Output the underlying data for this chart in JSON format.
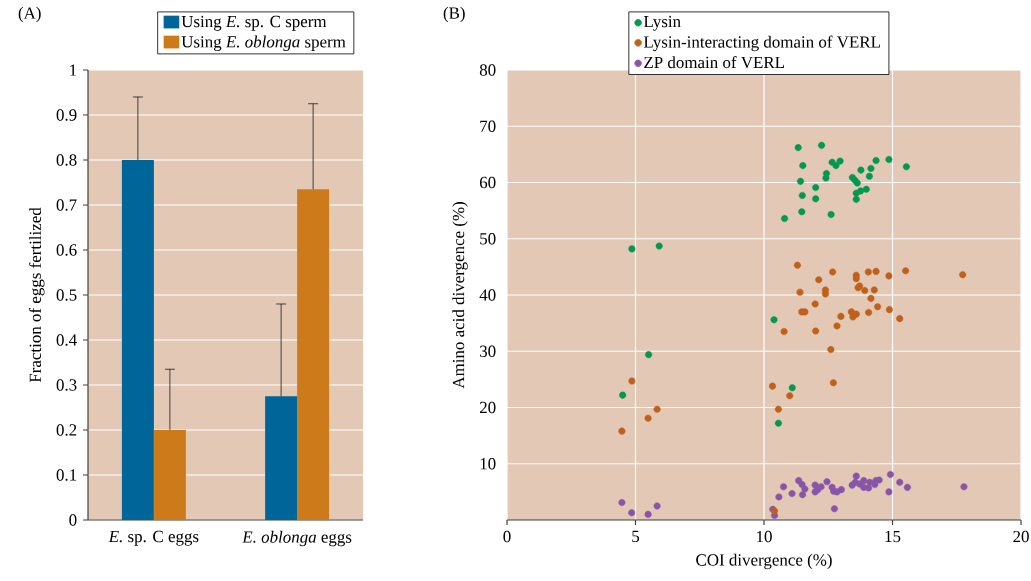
{
  "chart_data": [
    {
      "type": "bar",
      "title": "(A)",
      "ylabel": "Fraction of eggs fertilized",
      "categories": [
        "*E.* sp. C eggs",
        "*E. oblonga* eggs"
      ],
      "series": [
        {
          "name": "Using *E.* sp. C sperm",
          "color": "#006699",
          "values": [
            0.8,
            0.275
          ],
          "errors": [
            [
              0.8,
              0.94
            ],
            [
              0.275,
              0.48
            ]
          ]
        },
        {
          "name": "Using *E. oblonga* sperm",
          "color": "#cc7a1a",
          "values": [
            0.2,
            0.735
          ],
          "errors": [
            [
              0.2,
              0.335
            ],
            [
              0.735,
              0.925
            ]
          ]
        }
      ],
      "ylim": [
        0,
        1
      ],
      "yticks": [
        0,
        0.1,
        0.2,
        0.3,
        0.4,
        0.5,
        0.6,
        0.7,
        0.8,
        0.9,
        1
      ],
      "grid": "y",
      "legend": "top right"
    },
    {
      "type": "scatter",
      "title": "(B)",
      "xlabel": "COI divergence (%)",
      "ylabel": "Amino acid divergence (%)",
      "grid": true,
      "legend": "top",
      "xlim": [
        0,
        20
      ],
      "xticks": [
        0,
        5,
        10,
        15,
        20
      ],
      "ylim": [
        0,
        80
      ],
      "yticks": [
        10,
        20,
        30,
        40,
        50,
        60,
        70,
        80
      ],
      "series": [
        {
          "name": "Lysin",
          "color": "#00994d",
          "x": [
            11.33,
            12.24,
            11.51,
            12.65,
            12.96,
            12.8,
            12.43,
            12.41,
            11.42,
            13.44,
            13.54,
            13.63,
            13.77,
            14.16,
            14.1,
            14.36,
            14.86,
            15.54,
            12.01,
            11.49,
            12.01,
            13.98,
            13.76,
            13.59,
            13.59,
            11.47,
            12.61,
            10.8,
            4.86,
            5.92,
            10.39,
            5.51,
            4.5,
            10.56,
            11.1
          ],
          "values": [
            66.2,
            66.6,
            63.0,
            63.6,
            63.8,
            63.0,
            61.6,
            60.8,
            60.2,
            60.9,
            60.4,
            59.9,
            62.2,
            62.5,
            61.1,
            63.9,
            64.1,
            62.8,
            59.1,
            57.7,
            57.1,
            58.8,
            58.5,
            58.1,
            57.0,
            54.8,
            54.3,
            53.6,
            48.2,
            48.7,
            35.6,
            29.4,
            22.2,
            17.2,
            23.5
          ]
        },
        {
          "name": "Lysin-interacting domain of VERL",
          "color": "#c0601a",
          "x": [
            11.3,
            12.67,
            12.13,
            13.59,
            13.59,
            14.06,
            14.36,
            14.86,
            15.51,
            13.66,
            13.72,
            13.92,
            14.29,
            12.39,
            12.39,
            11.4,
            14.16,
            11.99,
            14.42,
            14.88,
            15.28,
            11.47,
            11.59,
            12.99,
            13.4,
            13.46,
            13.59,
            14.07,
            12.84,
            10.78,
            12.01,
            12.6,
            12.7,
            11.0,
            10.33,
            10.56,
            10.41,
            17.73,
            4.86,
            5.84,
            5.49,
            4.47
          ],
          "values": [
            45.3,
            44.1,
            42.7,
            43.5,
            42.9,
            44.1,
            44.2,
            43.4,
            44.3,
            41.3,
            41.6,
            40.8,
            40.9,
            40.9,
            40.2,
            40.5,
            39.4,
            38.4,
            37.9,
            37.4,
            35.8,
            37.0,
            37.0,
            36.2,
            37.0,
            36.1,
            36.6,
            36.9,
            34.5,
            33.5,
            33.6,
            30.3,
            24.4,
            22.1,
            23.8,
            19.7,
            1.6,
            43.6,
            24.7,
            19.7,
            18.1,
            15.8
          ]
        },
        {
          "name": "ZP domain of VERL",
          "color": "#8855aa",
          "x": [
            10.34,
            10.41,
            10.58,
            10.76,
            11.09,
            11.35,
            11.39,
            11.48,
            11.59,
            11.5,
            11.99,
            11.99,
            12.09,
            12.22,
            12.45,
            12.65,
            12.71,
            12.84,
            13.01,
            12.74,
            13.43,
            13.59,
            13.55,
            13.72,
            13.88,
            13.88,
            14.07,
            14.11,
            14.31,
            14.48,
            14.35,
            14.92,
            14.86,
            15.28,
            15.58,
            17.78,
            4.47,
            4.85,
            5.49,
            5.84
          ],
          "values": [
            1.9,
            0.8,
            4.1,
            5.9,
            4.7,
            7.0,
            null,
            6.3,
            5.5,
            4.5,
            6.2,
            5.0,
            5.4,
            5.9,
            6.8,
            5.8,
            5.1,
            5.0,
            5.4,
            2.0,
            6.2,
            7.8,
            6.7,
            6.4,
            7.0,
            5.8,
            5.7,
            6.7,
            6.3,
            7.1,
            7.0,
            8.1,
            5.0,
            6.7,
            5.8,
            5.9,
            3.1,
            1.3,
            1.0,
            2.5
          ]
        }
      ]
    }
  ]
}
